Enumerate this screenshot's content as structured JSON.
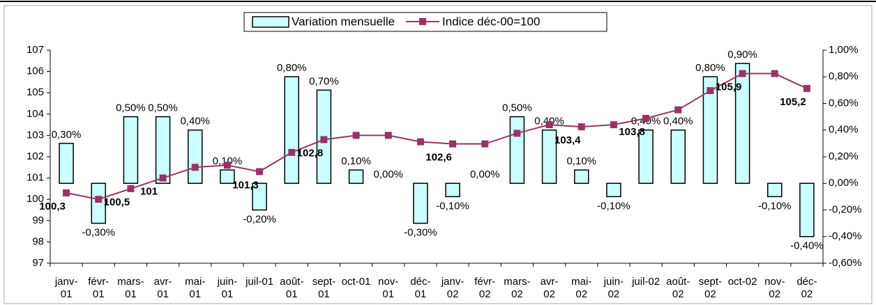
{
  "chart_data": {
    "type": "bar-line",
    "categories": [
      "janv-01",
      "févr-01",
      "mars-01",
      "avr-01",
      "mai-01",
      "juin-01",
      "juil-01",
      "août-01",
      "sept-01",
      "oct-01",
      "nov-01",
      "déc-01",
      "janv-02",
      "févr-02",
      "mars-02",
      "avr-02",
      "mai-02",
      "juin-02",
      "juil-02",
      "août-02",
      "sept-02",
      "oct-02",
      "nov-02",
      "déc-02"
    ],
    "series": [
      {
        "name": "Variation mensuelle",
        "type": "bar",
        "axis": "y2",
        "color": "#ccffff",
        "values": [
          0.3,
          -0.3,
          0.5,
          0.5,
          0.4,
          0.1,
          -0.2,
          0.8,
          0.7,
          0.1,
          0.0,
          -0.3,
          -0.1,
          0.0,
          0.5,
          0.4,
          0.1,
          -0.1,
          0.4,
          0.4,
          0.8,
          0.9,
          -0.1,
          -0.4
        ],
        "value_labels": [
          "0,30%",
          "-0,30%",
          "0,50%",
          "0,50%",
          "0,40%",
          "0,10%",
          "-0,20%",
          "0,80%",
          "0,70%",
          "0,10%",
          "0,00%",
          "-0,30%",
          "-0,10%",
          "0,00%",
          "0,50%",
          "0,40%",
          "0,10%",
          "-0,10%",
          "0,40%",
          "0,40%",
          "0,80%",
          "0,90%",
          "-0,10%",
          "-0,40%"
        ]
      },
      {
        "name": "Indice déc-00=100",
        "type": "line",
        "axis": "y",
        "color": "#993366",
        "values": [
          100.3,
          100.0,
          100.5,
          101,
          101.5,
          101.6,
          101.3,
          102.2,
          102.8,
          103.0,
          103.0,
          102.7,
          102.6,
          102.6,
          103.1,
          103.5,
          103.4,
          103.5,
          103.8,
          104.2,
          105.1,
          105.9,
          105.9,
          105.2
        ],
        "value_labels": [
          "100,3",
          null,
          "100,5",
          "101",
          null,
          null,
          "101,3",
          null,
          "102,8",
          null,
          null,
          null,
          "102,6",
          null,
          null,
          null,
          "103,4",
          null,
          "103,8",
          null,
          null,
          "105,9",
          null,
          "105,2"
        ]
      }
    ],
    "ylim": [
      97,
      107
    ],
    "yticks": [
      97,
      98,
      99,
      100,
      101,
      102,
      103,
      104,
      105,
      106,
      107
    ],
    "y2lim": [
      -0.6,
      1.0
    ],
    "y2ticks": [
      {
        "value": -0.6,
        "label": "-0,60%"
      },
      {
        "value": -0.4,
        "label": "-0,40%"
      },
      {
        "value": -0.2,
        "label": "-0,20%"
      },
      {
        "value": 0,
        "label": "0,00%"
      },
      {
        "value": 0.2,
        "label": "0,20%"
      },
      {
        "value": 0.4,
        "label": "0,40%"
      },
      {
        "value": 0.6,
        "label": "0,60%"
      },
      {
        "value": 0.8,
        "label": "0,80%"
      },
      {
        "value": 1.0,
        "label": "1,00%"
      }
    ],
    "legend": "top"
  }
}
